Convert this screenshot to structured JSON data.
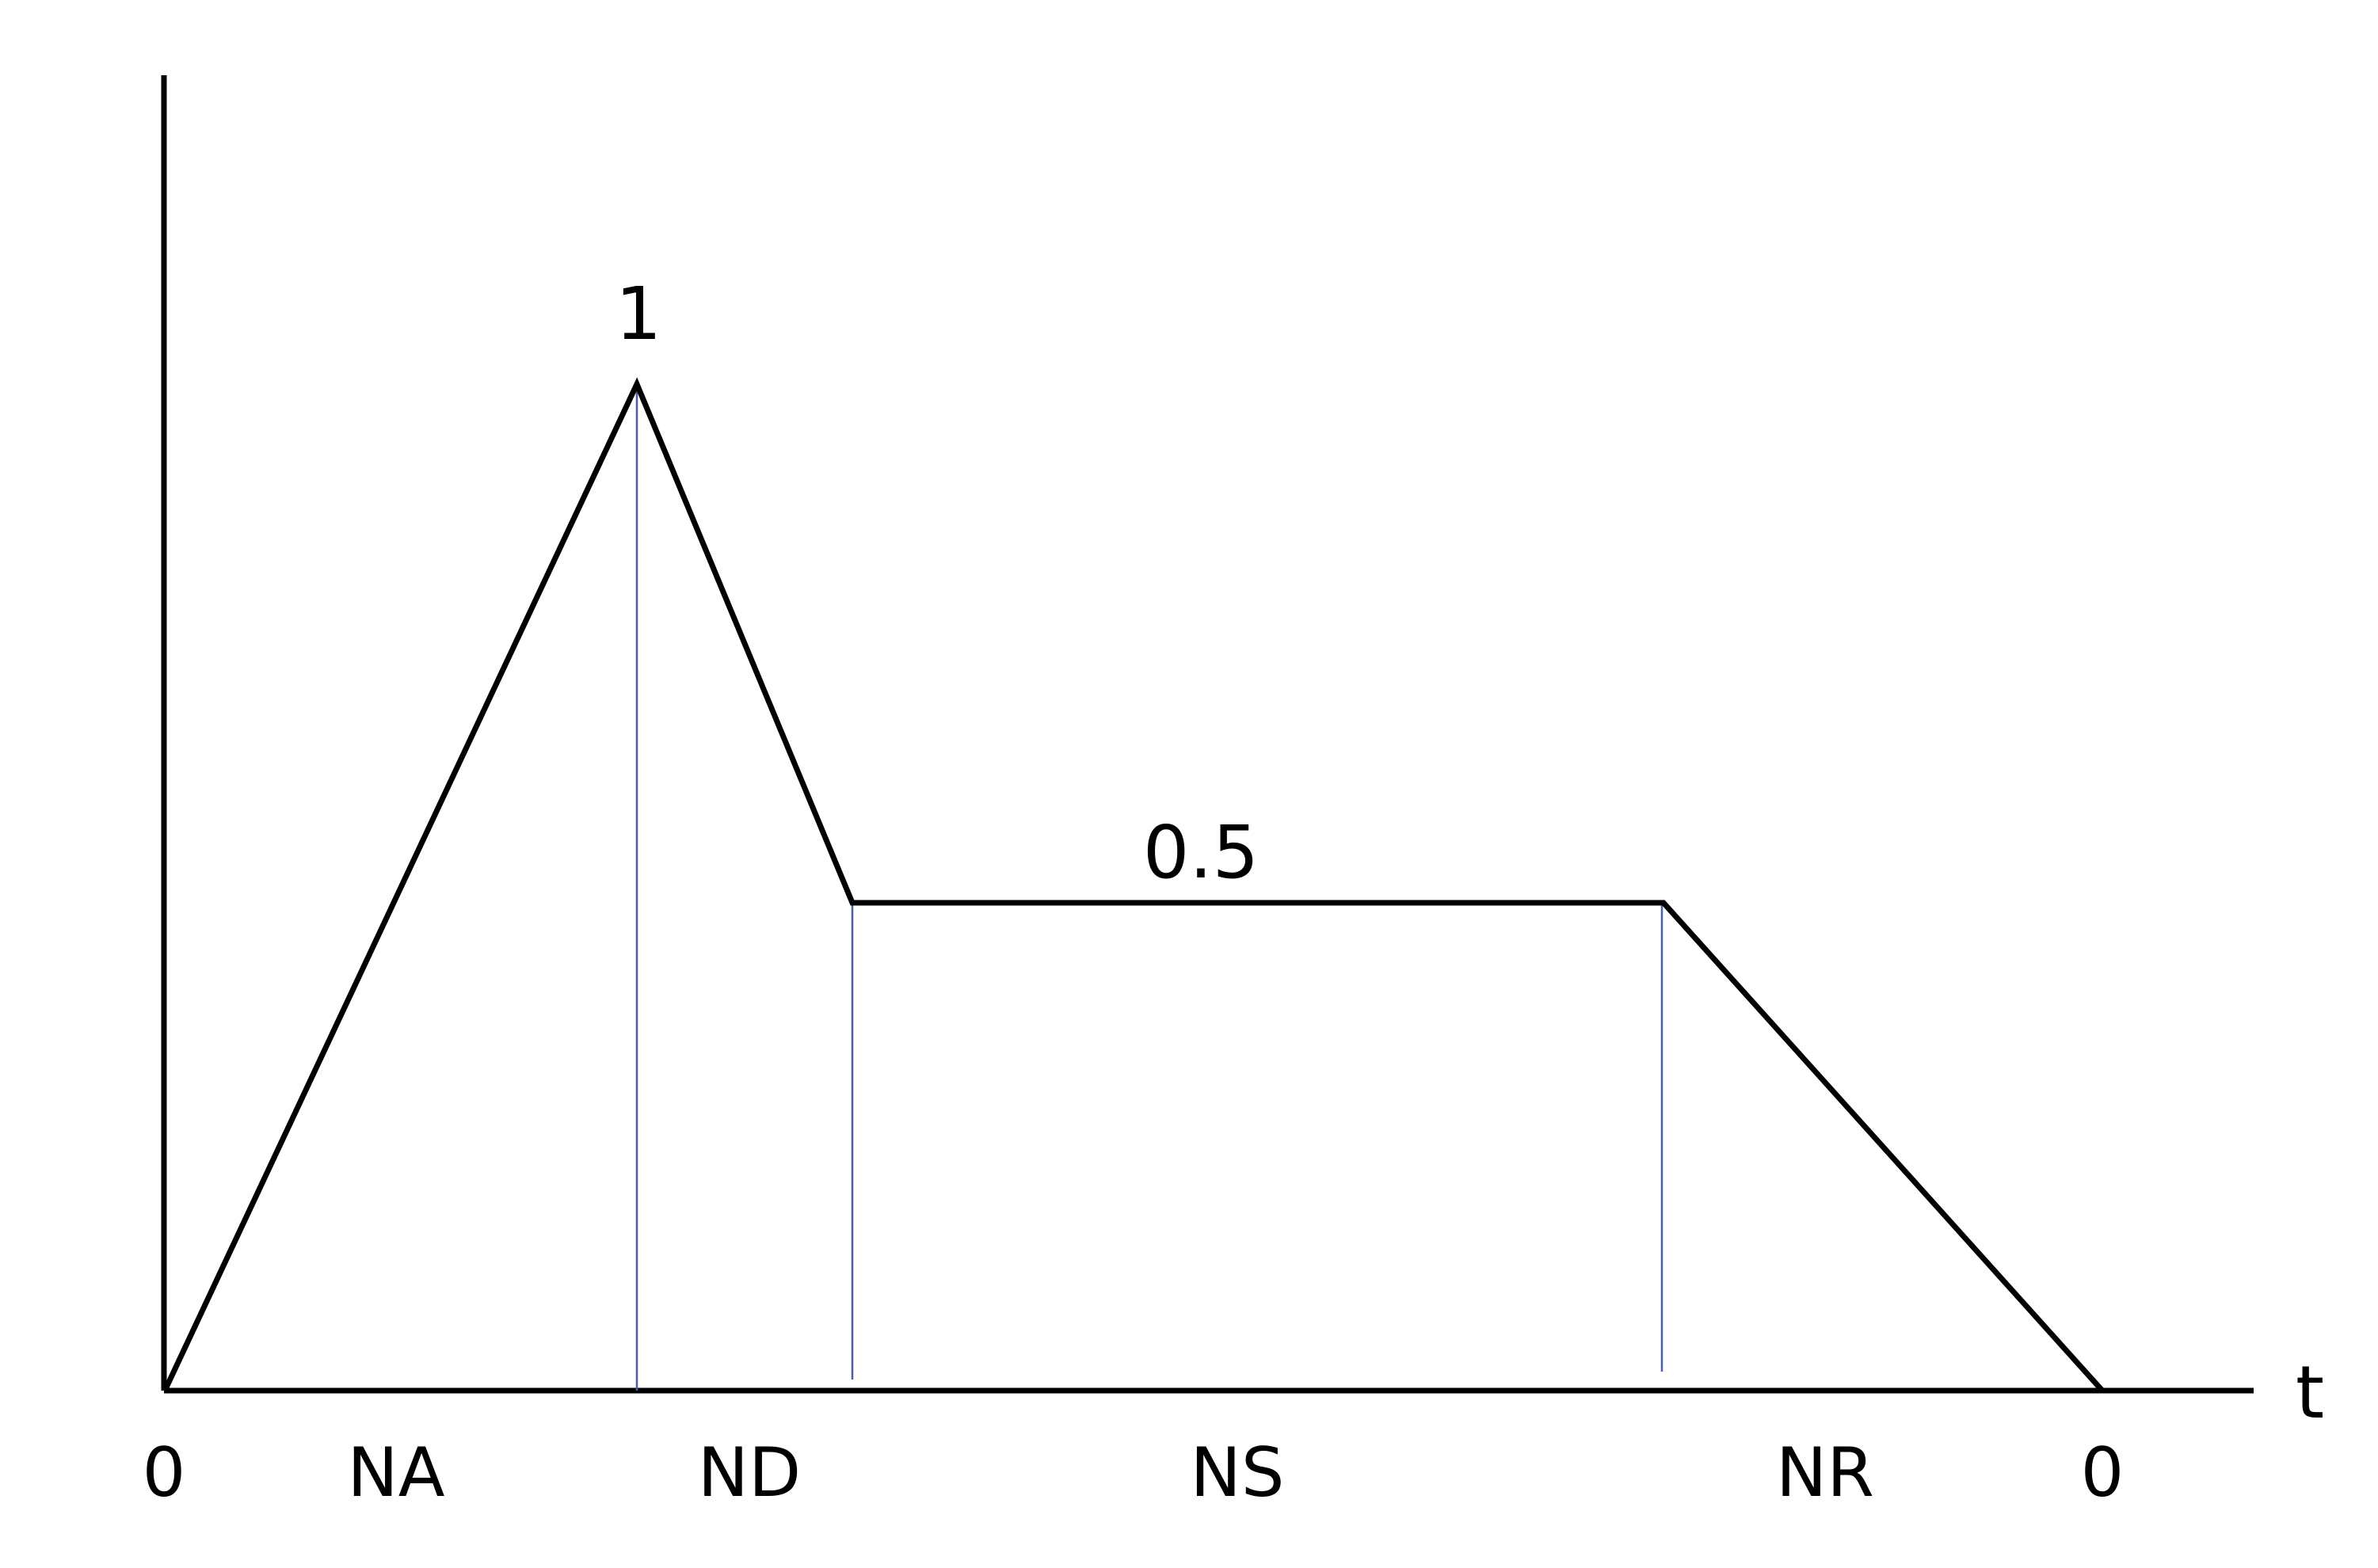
{
  "diagram": {
    "axis_label_t": "t",
    "peak_label": "1",
    "sustain_label": "0.5",
    "start_label": "0",
    "end_label": "0",
    "phases": [
      "NA",
      "ND",
      "NS",
      "NR"
    ]
  },
  "colors": {
    "envelope": "#000000",
    "divider": "#4a5fa8",
    "axes": "#000000"
  }
}
